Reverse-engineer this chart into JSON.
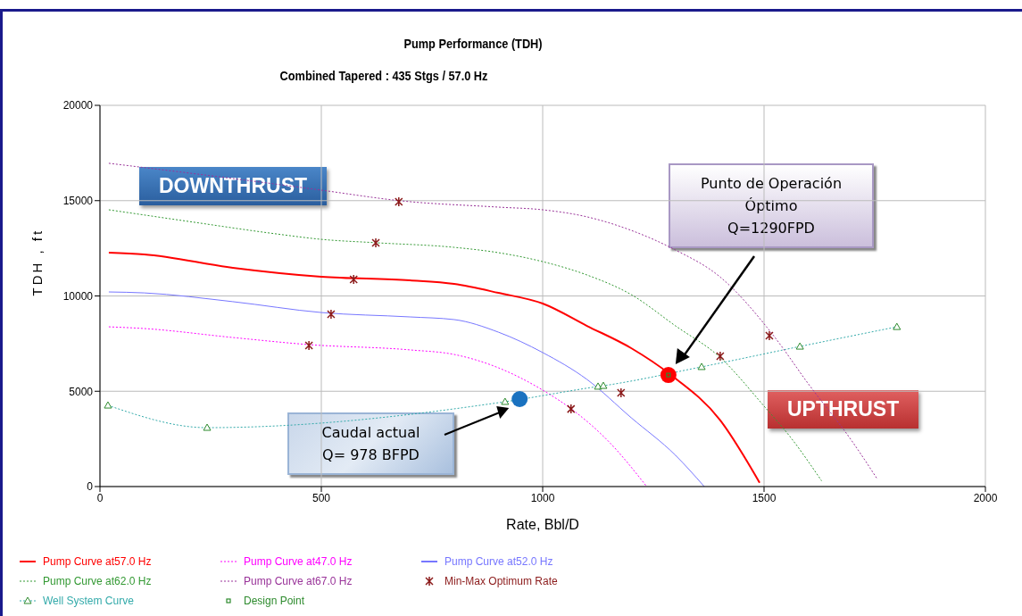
{
  "chart_data": {
    "type": "line",
    "title": "Pump Performance (TDH)",
    "subtitle": "Combined Tapered : 435 Stgs / 57.0 Hz",
    "xlabel": "Rate, Bbl/D",
    "ylabel": "TDH , ft",
    "xlim": [
      0,
      2000
    ],
    "xticks": [
      0,
      500,
      1000,
      1500,
      2000
    ],
    "ylim": [
      0,
      20000
    ],
    "yticks": [
      0,
      5000,
      10000,
      15000,
      20000
    ],
    "grid": true,
    "legend": "bottom",
    "series": [
      {
        "name": "Pump Curve at57.0 Hz",
        "color": "#ff0000",
        "line_style": "solid",
        "marker": "none",
        "x": [
          20,
          100,
          300,
          500,
          700,
          800,
          900,
          1000,
          1100,
          1200,
          1290,
          1400,
          1490
        ],
        "values": [
          12270,
          12180,
          11480,
          11010,
          10820,
          10630,
          10160,
          9600,
          8430,
          7260,
          5850,
          3510,
          200
        ]
      },
      {
        "name": "Pump Curve at47.0 Hz",
        "color": "#ff00ff",
        "line_style": "dotted",
        "marker": "none",
        "x": [
          20,
          100,
          300,
          470,
          700,
          800,
          900,
          1000,
          1070,
          1150,
          1235
        ],
        "values": [
          8380,
          8290,
          7820,
          7450,
          7170,
          6930,
          6230,
          5060,
          3980,
          2340,
          0
        ]
      },
      {
        "name": "Pump Curve at52.0 Hz",
        "color": "#7777ff",
        "line_style": "solid",
        "marker": "none",
        "x": [
          20,
          100,
          300,
          500,
          700,
          800,
          900,
          1000,
          1100,
          1200,
          1300,
          1365
        ],
        "values": [
          10210,
          10160,
          9700,
          9130,
          8900,
          8760,
          8100,
          7030,
          5620,
          3610,
          1640,
          0
        ]
      },
      {
        "name": "Pump Curve at62.0 Hz",
        "color": "#339933",
        "line_style": "dotted",
        "marker": "none",
        "x": [
          20,
          200,
          400,
          500,
          625,
          800,
          900,
          1000,
          1100,
          1200,
          1300,
          1400,
          1500,
          1560,
          1630
        ],
        "values": [
          14520,
          13910,
          13250,
          12970,
          12790,
          12550,
          12270,
          11800,
          11100,
          10070,
          8430,
          6790,
          4220,
          2580,
          300
        ]
      },
      {
        "name": "Pump Curve at67.0 Hz",
        "color": "#993399",
        "line_style": "dotted",
        "marker": "none",
        "x": [
          20,
          300,
          500,
          680,
          900,
          1000,
          1100,
          1200,
          1300,
          1400,
          1520,
          1600,
          1700,
          1755
        ],
        "values": [
          16960,
          16160,
          15550,
          14990,
          14660,
          14520,
          14150,
          13440,
          12410,
          11010,
          7960,
          5390,
          2340,
          420
        ]
      },
      {
        "name": "Min-Max Optimum Rate",
        "type": "scatter",
        "color": "#8b1a1a",
        "marker": "cross",
        "x": [
          472,
          522,
          573,
          623,
          675,
          1064,
          1177,
          1401,
          1512
        ],
        "values": [
          7400,
          9040,
          10870,
          12790,
          14940,
          4070,
          4920,
          6840,
          7920
        ]
      },
      {
        "name": "Well System Curve",
        "color": "#33aaaa",
        "line_style": "dotted",
        "marker": "triangle",
        "x": [
          18,
          242,
          915,
          1125,
          1137,
          1359,
          1581,
          1800
        ],
        "values": [
          4260,
          3090,
          4450,
          5250,
          5290,
          6280,
          7350,
          8380
        ]
      },
      {
        "type": "scatter",
        "color": "#1a72c0",
        "marker": "circle",
        "x": [
          948
        ],
        "values": [
          4590
        ]
      },
      {
        "type": "scatter",
        "color": "#ff0000",
        "marker": "circle",
        "x": [
          1284
        ],
        "values": [
          5850
        ]
      },
      {
        "name": "Design Point",
        "type": "scatter",
        "color": "#2e8b2e",
        "marker": "square",
        "x": [
          1284
        ],
        "values": [
          5850
        ]
      }
    ],
    "annotations": [
      "DOWNTHRUST",
      "UPTHRUST",
      "Punto de Operación\nÓptimo\nQ=1290FPD",
      "Caudal actual\nQ= 978 BFPD"
    ]
  }
}
